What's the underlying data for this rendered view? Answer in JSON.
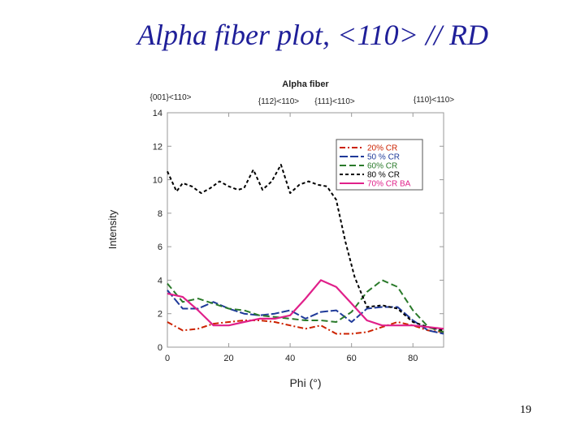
{
  "slide": {
    "title": "Alpha fiber plot, <110> // RD",
    "page_number": "19"
  },
  "chart_data": {
    "type": "line",
    "title": "Alpha fiber",
    "xlabel": "Phi (°)",
    "ylabel": "Intensity",
    "xlim": [
      0,
      90
    ],
    "ylim": [
      0,
      14
    ],
    "xticks": [
      0,
      20,
      40,
      60,
      80
    ],
    "yticks": [
      0,
      2,
      4,
      6,
      8,
      10,
      12,
      14
    ],
    "annotations": [
      {
        "text": "{001}<110>",
        "x": 0
      },
      {
        "text": "{112}<110>",
        "x": 35
      },
      {
        "text": "{111}<110>",
        "x": 54.7
      },
      {
        "text": "{110}<110>",
        "x": 90
      }
    ],
    "legend_position": "top-right",
    "series": [
      {
        "name": "20% CR",
        "color": "#cc2200",
        "dash": "7,3,2,3",
        "x": [
          0,
          5,
          10,
          15,
          20,
          25,
          30,
          35,
          40,
          45,
          50,
          55,
          60,
          65,
          70,
          75,
          80,
          85,
          90
        ],
        "values": [
          1.5,
          1.0,
          1.1,
          1.4,
          1.5,
          1.6,
          1.6,
          1.5,
          1.3,
          1.1,
          1.3,
          0.8,
          0.8,
          0.9,
          1.2,
          1.5,
          1.3,
          1.0,
          0.9
        ]
      },
      {
        "name": "50 % CR",
        "color": "#1f3a99",
        "dash": "10,3",
        "x": [
          0,
          5,
          10,
          15,
          20,
          25,
          30,
          35,
          40,
          45,
          50,
          55,
          60,
          65,
          70,
          75,
          80,
          85,
          90
        ],
        "values": [
          3.4,
          2.3,
          2.3,
          2.7,
          2.3,
          2.0,
          1.9,
          2.0,
          2.2,
          1.7,
          2.1,
          2.2,
          1.5,
          2.3,
          2.4,
          2.4,
          1.6,
          1.0,
          0.8
        ]
      },
      {
        "name": "60% CR",
        "color": "#2a7a2a",
        "dash": "8,4",
        "x": [
          0,
          5,
          10,
          15,
          20,
          25,
          30,
          35,
          40,
          45,
          50,
          55,
          60,
          65,
          70,
          75,
          80,
          85,
          90
        ],
        "values": [
          3.8,
          2.7,
          2.9,
          2.6,
          2.3,
          2.2,
          1.9,
          1.8,
          1.7,
          1.6,
          1.6,
          1.5,
          2.1,
          3.3,
          4.0,
          3.6,
          2.2,
          1.2,
          0.9
        ]
      },
      {
        "name": "80 % CR",
        "color": "#000000",
        "dash": "4,3",
        "x": [
          0,
          3,
          5,
          8,
          11,
          14,
          17,
          20,
          23,
          25,
          28,
          31,
          34,
          37,
          40,
          43,
          46,
          49,
          52,
          55,
          58,
          61,
          65,
          70,
          75,
          80,
          85,
          90
        ],
        "values": [
          10.5,
          9.3,
          9.8,
          9.6,
          9.2,
          9.5,
          9.9,
          9.6,
          9.4,
          9.5,
          10.6,
          9.4,
          9.9,
          10.9,
          9.2,
          9.7,
          9.9,
          9.7,
          9.6,
          8.8,
          6.3,
          4.2,
          2.4,
          2.5,
          2.3,
          1.5,
          1.2,
          1.0
        ]
      },
      {
        "name": "70% CR BA",
        "color": "#e0208a",
        "dash": "",
        "x": [
          0,
          5,
          10,
          15,
          20,
          25,
          30,
          35,
          40,
          45,
          50,
          55,
          60,
          65,
          70,
          75,
          80,
          85,
          90
        ],
        "values": [
          3.2,
          3.0,
          2.2,
          1.3,
          1.3,
          1.5,
          1.7,
          1.7,
          1.9,
          2.9,
          4.0,
          3.6,
          2.6,
          1.6,
          1.3,
          1.3,
          1.3,
          1.2,
          1.1
        ]
      }
    ]
  }
}
